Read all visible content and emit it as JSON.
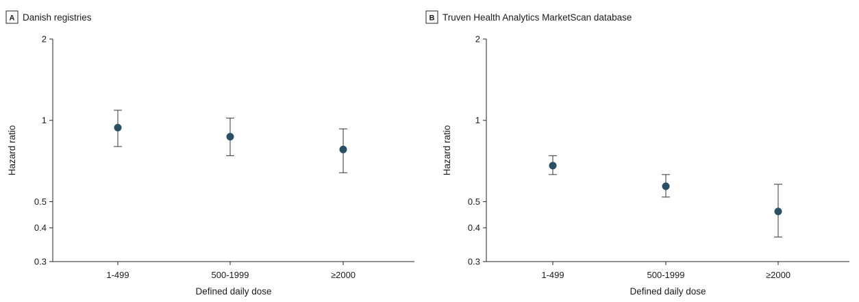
{
  "chart_data": [
    {
      "type": "scatter",
      "panel_letter": "A",
      "title": "Danish registries",
      "xlabel": "Defined daily dose",
      "ylabel": "Hazard ratio",
      "y_scale": "log",
      "ylim": [
        0.3,
        2
      ],
      "y_ticks": [
        2,
        1,
        0.5,
        0.4,
        0.3
      ],
      "categories": [
        "1-499",
        "500-1999",
        "≥2000"
      ],
      "series": [
        {
          "values": [
            0.94,
            0.87,
            0.78
          ],
          "ci_lower": [
            0.8,
            0.74,
            0.64
          ],
          "ci_upper": [
            1.09,
            1.02,
            0.93
          ]
        }
      ],
      "marker_color": "#2b4f63",
      "grid": false
    },
    {
      "type": "scatter",
      "panel_letter": "B",
      "title": "Truven Health Analytics MarketScan database",
      "xlabel": "Defined daily dose",
      "ylabel": "Hazard ratio",
      "y_scale": "log",
      "ylim": [
        0.3,
        2
      ],
      "y_ticks": [
        2,
        1,
        0.5,
        0.4,
        0.3
      ],
      "categories": [
        "1-499",
        "500-1999",
        "≥2000"
      ],
      "series": [
        {
          "values": [
            0.68,
            0.57,
            0.46
          ],
          "ci_lower": [
            0.63,
            0.52,
            0.37
          ],
          "ci_upper": [
            0.74,
            0.63,
            0.58
          ]
        }
      ],
      "marker_color": "#2b4f63",
      "grid": false
    }
  ]
}
